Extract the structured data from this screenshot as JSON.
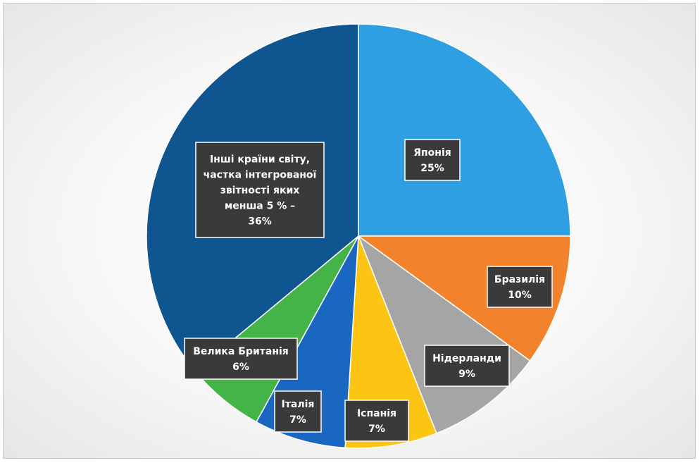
{
  "chart_data": {
    "type": "pie",
    "slices": [
      {
        "label": "Японія",
        "value": 25,
        "display": "25%",
        "color": "#2e9fe3"
      },
      {
        "label": "Бразилія",
        "value": 10,
        "display": "10%",
        "color": "#f2832c"
      },
      {
        "label": "Нідерланди",
        "value": 9,
        "display": "9%",
        "color": "#a5a5a5"
      },
      {
        "label": "Іспанія",
        "value": 7,
        "display": "7%",
        "color": "#fdc513"
      },
      {
        "label": "Італія",
        "value": 7,
        "display": "7%",
        "color": "#1a67c2"
      },
      {
        "label": "Велика Британія",
        "value": 6,
        "display": "6%",
        "color": "#44b449"
      },
      {
        "label": "Інші країни світу, частка інтегрованої звітності яких менша 5 % –",
        "label_lines": [
          "Інші країни світу,",
          "частка інтегрованої",
          "звітності яких",
          "менша 5 % –"
        ],
        "value": 36,
        "display": "36%",
        "color": "#0f5590"
      }
    ],
    "start_angle": "12 o'clock",
    "direction": "clockwise",
    "legend": "none",
    "data_labels": "inside, dark boxes"
  }
}
